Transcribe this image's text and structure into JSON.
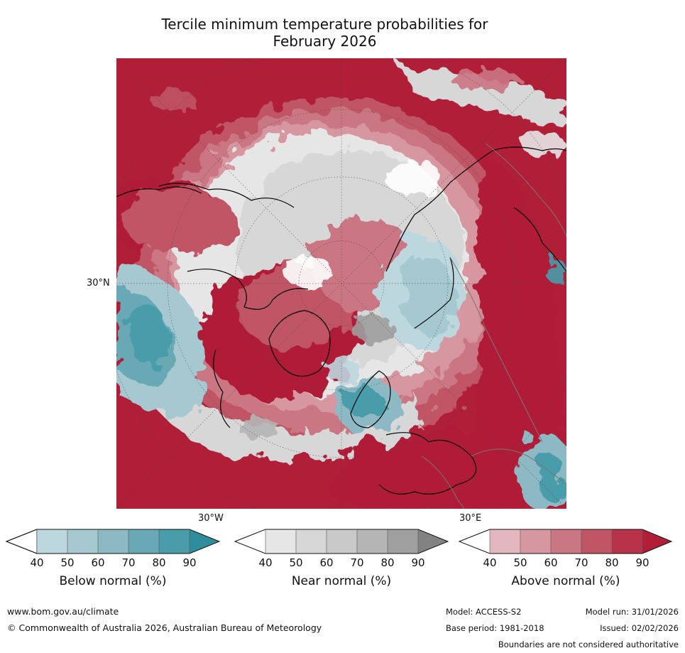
{
  "title": {
    "line1": "Tercile minimum temperature probabilities for",
    "line2": "February 2026"
  },
  "map": {
    "lat_label": "30°N",
    "lon_labels": [
      "30°W",
      "30°E"
    ]
  },
  "colorbars": [
    {
      "label": "Below normal (%)",
      "ticks": [
        "40",
        "50",
        "60",
        "70",
        "80",
        "90"
      ],
      "colors": [
        "#ffffff",
        "#bdd7de",
        "#a6c8d0",
        "#8cb9c3",
        "#68a9b5",
        "#4a9caa",
        "#2e8d9d"
      ]
    },
    {
      "label": "Near normal (%)",
      "ticks": [
        "40",
        "50",
        "60",
        "70",
        "80",
        "90"
      ],
      "colors": [
        "#ffffff",
        "#e6e6e6",
        "#d7d7d7",
        "#c9c9c9",
        "#b5b5b5",
        "#9f9f9f",
        "#828282"
      ]
    },
    {
      "label": "Above normal (%)",
      "ticks": [
        "40",
        "50",
        "60",
        "70",
        "80",
        "90"
      ],
      "colors": [
        "#ffffff",
        "#e3b7bf",
        "#d797a1",
        "#cb7683",
        "#c05566",
        "#b8334a",
        "#b01e38"
      ]
    }
  ],
  "footer": {
    "website": "www.bom.gov.au/climate",
    "copyright": "© Commonwealth of Australia 2026, Australian Bureau of Meteorology",
    "model": "Model: ACCESS-S2",
    "base_period": "Base period: 1981-2018",
    "model_run": "Model run: 31/01/2026",
    "issued": "Issued: 02/02/2026",
    "disclaimer": "Boundaries are not considered authoritative"
  }
}
